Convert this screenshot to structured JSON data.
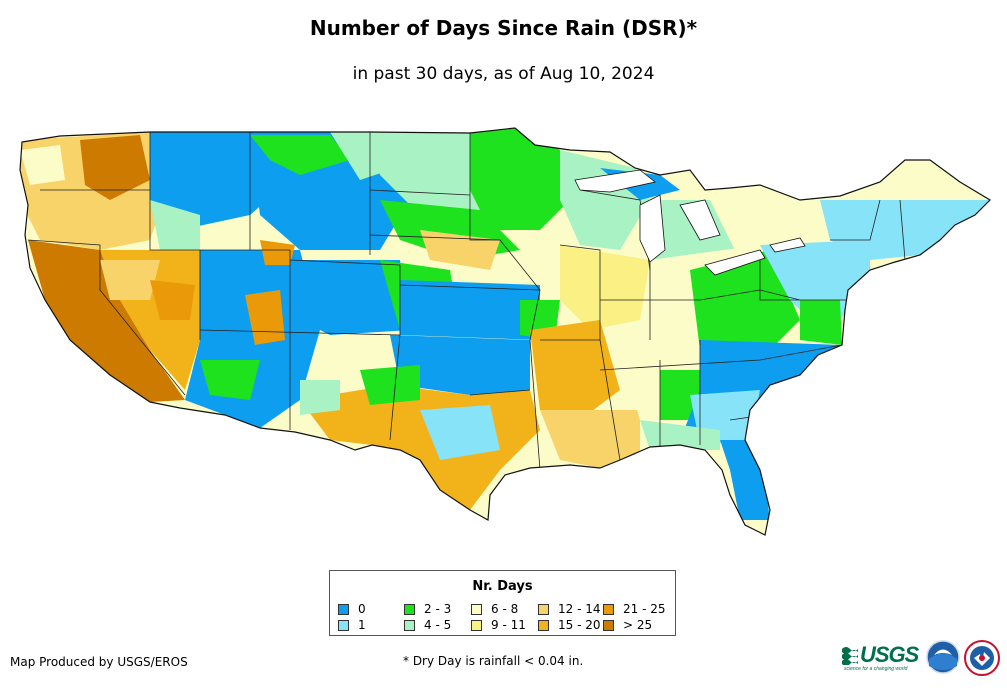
{
  "title": "Number of Days Since Rain (DSR)*",
  "subtitle": "in past 30 days, as of Aug 10, 2024",
  "legend": {
    "title": "Nr. Days",
    "items": [
      {
        "label": "0",
        "color": "#0d9ef0"
      },
      {
        "label": "1",
        "color": "#86e3f8"
      },
      {
        "label": "2 - 3",
        "color": "#1ee21e"
      },
      {
        "label": "4 - 5",
        "color": "#a9f2c4"
      },
      {
        "label": "6 - 8",
        "color": "#fcfcc8"
      },
      {
        "label": "9 - 11",
        "color": "#faf084"
      },
      {
        "label": "12 - 14",
        "color": "#f7d36a"
      },
      {
        "label": "15 - 20",
        "color": "#f2b21a"
      },
      {
        "label": "21 - 25",
        "color": "#ea9a08"
      },
      {
        "label": "> 25",
        "color": "#cc7a00"
      }
    ]
  },
  "credit": "Map Produced by USGS/EROS",
  "footnote": "* Dry Day is rainfall < 0.04 in.",
  "logos": {
    "usgs_text": "USGS",
    "usgs_tagline": "science for a changing world"
  }
}
